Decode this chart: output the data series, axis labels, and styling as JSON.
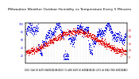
{
  "title": "Milwaukee Weather Outdoor Humidity vs Temperature Every 5 Minutes",
  "title_fontsize": 3.2,
  "background_color": "#ffffff",
  "humidity_color": "#0000dd",
  "temp_color": "#dd0000",
  "grid_color": "#aaaaaa",
  "marker_size": 0.5,
  "hum_yticks": [
    20,
    40,
    60,
    80,
    100
  ],
  "hum_ylabels": [
    "20",
    "40",
    "60",
    "80",
    "100"
  ],
  "temp_yticks_f": [
    0,
    20,
    40,
    60,
    80
  ],
  "temp_yticks_labels": [
    "0",
    "20",
    "40",
    "60",
    "80"
  ],
  "hum_min": 0,
  "hum_max": 100,
  "temp_min": -20,
  "temp_max": 100,
  "n_points": 800,
  "n_gridlines": 36
}
